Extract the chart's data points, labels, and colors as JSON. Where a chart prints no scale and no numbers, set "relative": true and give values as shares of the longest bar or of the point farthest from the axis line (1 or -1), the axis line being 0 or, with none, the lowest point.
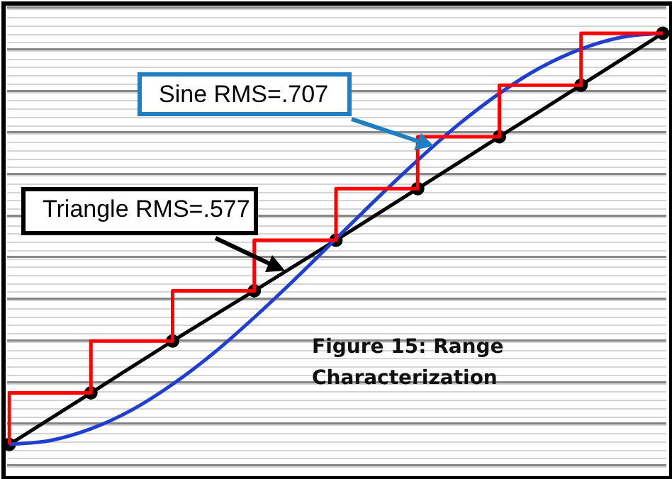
{
  "chart_data": {
    "type": "line",
    "relative": true,
    "legend": false,
    "categories": [
      null,
      null,
      null,
      null,
      null,
      null,
      null,
      null,
      null,
      null,
      null,
      null,
      null,
      null,
      null,
      null,
      null
    ],
    "annotations": [
      "Sine RMS=.707",
      "Triangle RMS=.577",
      "Figure 15: Range Characterization"
    ],
    "series": [
      {
        "type": "step",
        "color": "#ff0000",
        "marker": "none",
        "values": [
          0.058,
          0.176,
          0.176,
          0.295,
          0.295,
          0.41,
          0.41,
          0.526,
          0.526,
          0.644,
          0.644,
          0.763,
          0.763,
          0.881,
          0.881,
          1,
          1
        ]
      },
      {
        "color": "#1f3fd0",
        "marker": "none",
        "values": [
          0.058,
          0.067,
          0.094,
          0.137,
          0.196,
          0.267,
          0.349,
          0.437,
          0.529,
          0.621,
          0.709,
          0.791,
          0.862,
          0.921,
          0.964,
          0.991,
          1
        ]
      },
      {
        "color": "#000000",
        "marker": "circle",
        "values": [
          0.058,
          null,
          0.176,
          null,
          0.295,
          null,
          0.41,
          null,
          0.526,
          null,
          0.644,
          null,
          0.763,
          null,
          0.881,
          null,
          1
        ]
      }
    ]
  }
}
